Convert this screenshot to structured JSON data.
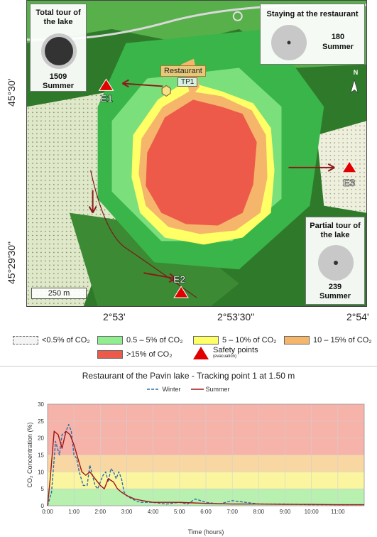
{
  "map": {
    "boxes": {
      "total": {
        "title": "Total tour of the lake",
        "value": "1509",
        "season": "Summer"
      },
      "staying": {
        "title": "Staying at the restaurant",
        "value": "180",
        "season": "Summer"
      },
      "partial": {
        "title": "Partial tour of the lake",
        "value": "239",
        "season": "Summer"
      }
    },
    "labels": {
      "restaurant": "Restaurant",
      "tracking_point": "TP1",
      "safety_points": [
        "E1",
        "E2",
        "E3"
      ],
      "scale": "250 m",
      "north": "N"
    },
    "latitude_labels": [
      "45°30'",
      "45°29'30\""
    ],
    "longitude_labels": [
      "2°53'",
      "2°53'30\"",
      "2°54'"
    ]
  },
  "legend": {
    "items": [
      {
        "label": "<0.5% of CO₂",
        "color": "#f4f4f4"
      },
      {
        "label": "0.5 – 5% of CO₂",
        "color": "#90ee90"
      },
      {
        "label": "5 – 10% of CO₂",
        "color": "#ffff66"
      },
      {
        "label": "10 – 15% of CO₂",
        "color": "#f5b66b"
      },
      {
        "label": ">15% of CO₂",
        "color": "#ee5a4a"
      }
    ],
    "safety_label": "Safety points",
    "safety_sub": "(evacuation)"
  },
  "chart_data": {
    "type": "line",
    "title": "Restaurant of the Pavin lake - Tracking point 1 at 1.50 m",
    "xlabel": "Time (hours)",
    "ylabel": "CO₂ Concentration (%)",
    "ylim": [
      0,
      30
    ],
    "xlim": [
      0,
      12
    ],
    "yticks": [
      0,
      5,
      10,
      15,
      20,
      25,
      30
    ],
    "xticks": [
      "0:00",
      "1:00",
      "2:00",
      "3:00",
      "4:00",
      "5:00",
      "6:00",
      "7:00",
      "8:00",
      "9:00",
      "10:00",
      "11:00"
    ],
    "grid": true,
    "legend_position": "top",
    "bands": [
      {
        "from": 0,
        "to": 5,
        "color": "#b8f0b0"
      },
      {
        "from": 5,
        "to": 10,
        "color": "#fbf5a0"
      },
      {
        "from": 10,
        "to": 15,
        "color": "#f9d7a3"
      },
      {
        "from": 15,
        "to": 30,
        "color": "#f6b3aa"
      }
    ],
    "series": [
      {
        "name": "Winter",
        "color": "#2e6fa8",
        "dashed": true,
        "x": [
          0,
          0.15,
          0.3,
          0.45,
          0.55,
          0.7,
          0.8,
          0.9,
          1.0,
          1.1,
          1.2,
          1.35,
          1.5,
          1.6,
          1.7,
          1.8,
          1.9,
          2.0,
          2.1,
          2.2,
          2.3,
          2.4,
          2.5,
          2.6,
          2.7,
          2.8,
          2.9,
          3.0,
          3.2,
          3.5,
          4.0,
          4.5,
          5.0,
          5.3,
          5.6,
          5.8,
          6.0,
          6.5,
          7.0,
          8.0,
          9.0,
          10.0,
          11.0,
          12.0
        ],
        "y": [
          0,
          4,
          19,
          15,
          21,
          22,
          24,
          22,
          15,
          14,
          10,
          6,
          6,
          12,
          9,
          6,
          5,
          7,
          9,
          10,
          7,
          11,
          10,
          8,
          10,
          8,
          4,
          3,
          2,
          1,
          1,
          0.5,
          1,
          0.5,
          2,
          1.5,
          1,
          0.5,
          1.5,
          0.5,
          0.5,
          0.3,
          0.3,
          0.3
        ]
      },
      {
        "name": "Summer",
        "color": "#a31515",
        "dashed": false,
        "x": [
          0,
          0.1,
          0.25,
          0.4,
          0.55,
          0.7,
          0.85,
          1.0,
          1.15,
          1.3,
          1.45,
          1.6,
          1.8,
          2.0,
          2.15,
          2.3,
          2.5,
          2.65,
          2.8,
          3.0,
          3.3,
          3.6,
          4.0,
          4.5,
          5.0,
          6.0,
          7.0,
          8.0,
          9.0,
          10.0,
          11.0,
          12.0
        ],
        "y": [
          0,
          8,
          22,
          21,
          17,
          22,
          21,
          18,
          14,
          10,
          9,
          10,
          8,
          6,
          5,
          8,
          7,
          5,
          4,
          3,
          2,
          1.5,
          1,
          1,
          1,
          0.7,
          0.5,
          0.5,
          0.4,
          0.4,
          0.3,
          0.3
        ]
      }
    ]
  }
}
